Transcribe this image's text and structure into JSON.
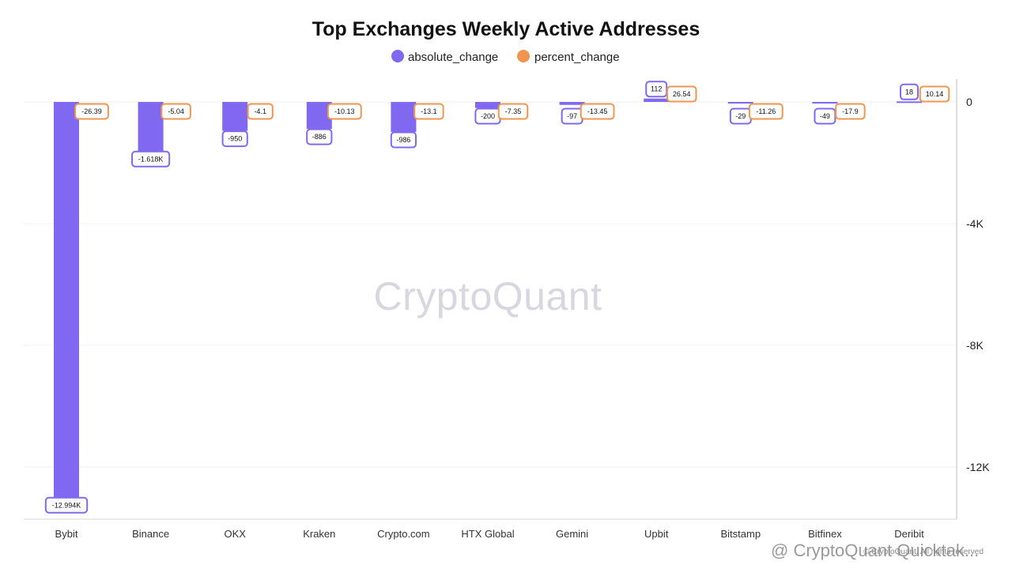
{
  "chart_data": {
    "type": "bar",
    "title": "Top Exchanges Weekly Active Addresses",
    "categories": [
      "Bybit",
      "Binance",
      "OKX",
      "Kraken",
      "Crypto.com",
      "HTX Global",
      "Gemini",
      "Upbit",
      "Bitstamp",
      "Bitfinex",
      "Deribit"
    ],
    "series": [
      {
        "name": "absolute_change",
        "color": "#8069f0",
        "values": [
          -12994,
          -1618,
          -950,
          -886,
          -986,
          -200,
          -97,
          112,
          -29,
          -49,
          18
        ],
        "labels": [
          "-12.994K",
          "-1.618K",
          "-950",
          "-886",
          "-986",
          "-200",
          "-97",
          "112",
          "-29",
          "-49",
          "18"
        ]
      },
      {
        "name": "percent_change",
        "color": "#f0954f",
        "values": [
          -26.39,
          -5.04,
          -4.1,
          -10.13,
          -13.1,
          -7.35,
          -13.45,
          26.54,
          -11.26,
          -17.9,
          10.14
        ],
        "labels": [
          "-26.39",
          "-5.04",
          "-4.1",
          "-10.13",
          "-13.1",
          "-7.35",
          "-13.45",
          "26.54",
          "-11.26",
          "-17.9",
          "10.14"
        ]
      }
    ],
    "y_axis": {
      "position": "right",
      "ticks": [
        0,
        -4000,
        -8000,
        -12000
      ],
      "tick_labels": [
        "0",
        "-4K",
        "-8K",
        "-12K"
      ],
      "range": [
        -13700,
        750
      ]
    },
    "grid": true,
    "legend": "top-center"
  },
  "watermark": "CryptoQuant",
  "footer": {
    "source": "@ CryptoQuant Quicktak...",
    "copyright": "© CryptoQuant. All rights reserved"
  }
}
